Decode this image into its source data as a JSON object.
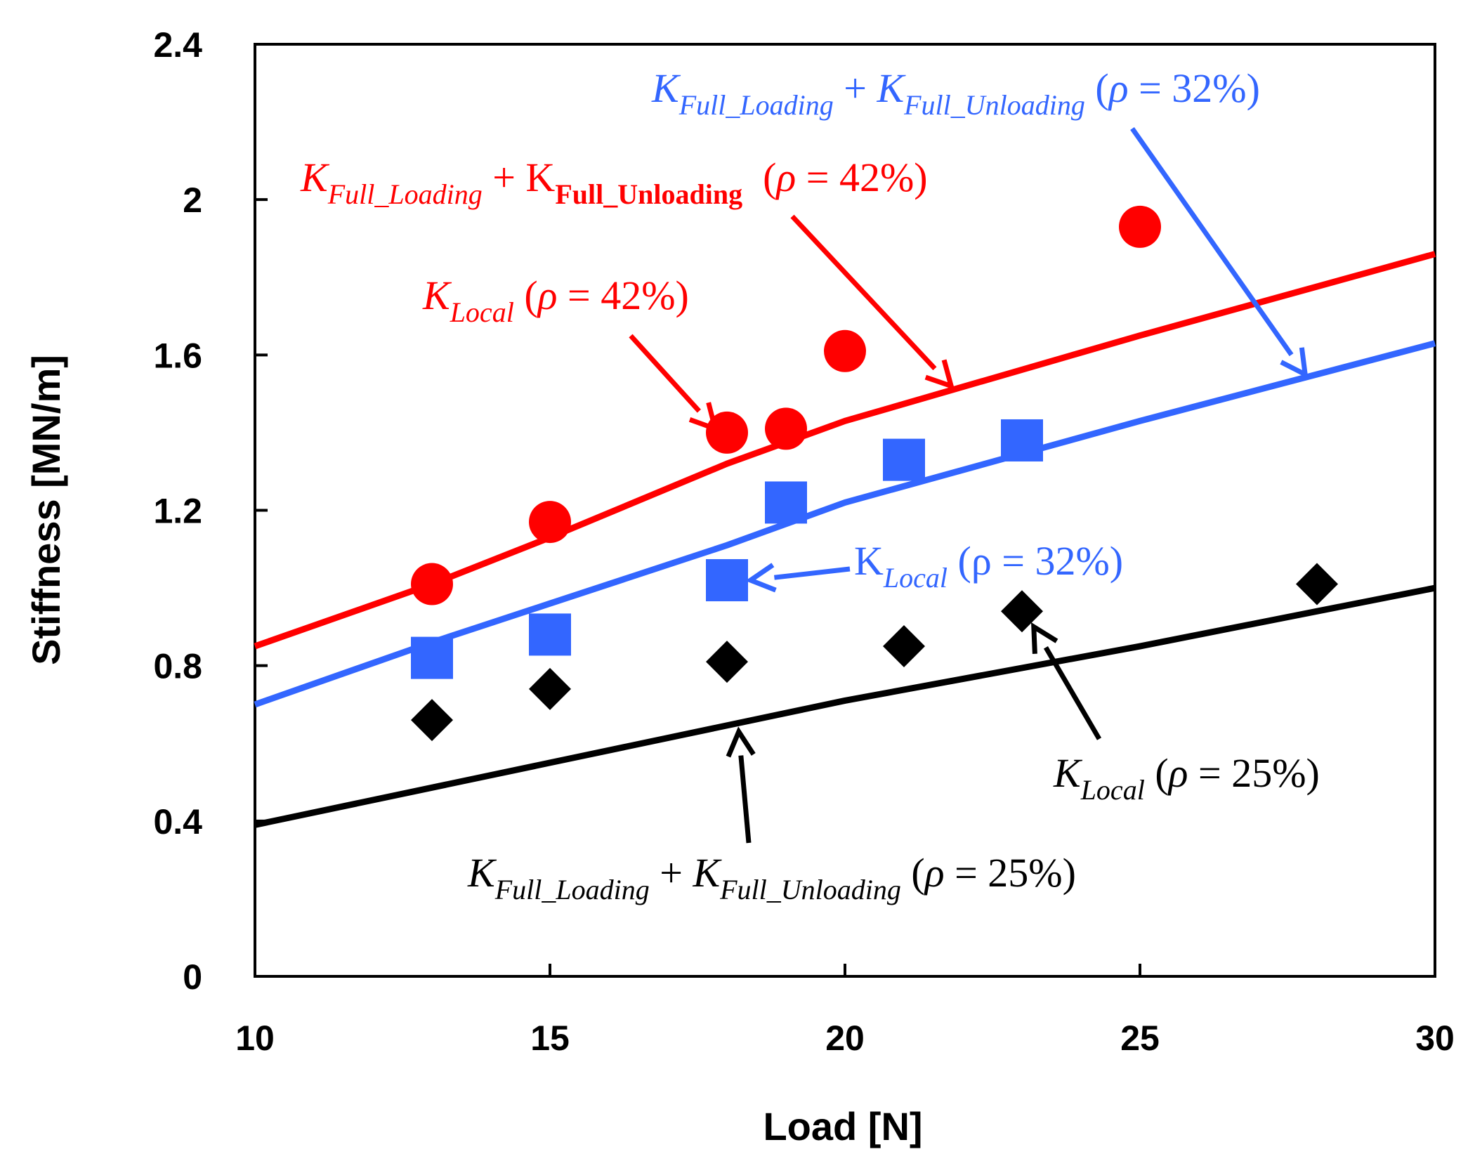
{
  "chart_data": {
    "type": "scatter",
    "title": "",
    "xlabel": "Load [N]",
    "ylabel": "Stiffness [MN/m]",
    "xlim": [
      10,
      30
    ],
    "ylim": [
      0,
      2.4
    ],
    "x_ticks": [
      "10",
      "15",
      "20",
      "25",
      "30"
    ],
    "y_ticks": [
      "0",
      "0.4",
      "0.8",
      "1.2",
      "1.6",
      "2",
      "2.4"
    ],
    "grid": false,
    "series": [
      {
        "name": "K_Local (ρ = 42%)",
        "kind": "points",
        "marker": "circle",
        "color": "#ff0000",
        "x": [
          13,
          15,
          18,
          19,
          20,
          25
        ],
        "y": [
          1.01,
          1.17,
          1.4,
          1.41,
          1.61,
          1.93
        ]
      },
      {
        "name": "K_Local (ρ = 32%)",
        "kind": "points",
        "marker": "square",
        "color": "#3366ff",
        "x": [
          13,
          15,
          18,
          19,
          21,
          23
        ],
        "y": [
          0.82,
          0.88,
          1.02,
          1.22,
          1.33,
          1.38
        ]
      },
      {
        "name": "K_Local (ρ = 25%)",
        "kind": "points",
        "marker": "diamond",
        "color": "#000000",
        "x": [
          13,
          15,
          18,
          21,
          23,
          28
        ],
        "y": [
          0.66,
          0.74,
          0.81,
          0.85,
          0.94,
          1.01
        ]
      },
      {
        "name": "K_Full_Loading + K_Full_Unloading (ρ = 42%)",
        "kind": "line",
        "color": "#ff0000",
        "x": [
          10,
          13,
          15,
          18,
          20,
          25,
          30
        ],
        "y": [
          0.85,
          1.01,
          1.13,
          1.32,
          1.43,
          1.65,
          1.86
        ]
      },
      {
        "name": "K_Full_Loading + K_Full_Unloading (ρ = 32%)",
        "kind": "line",
        "color": "#3366ff",
        "x": [
          10,
          13,
          15,
          18,
          20,
          25,
          30
        ],
        "y": [
          0.7,
          0.86,
          0.96,
          1.11,
          1.22,
          1.43,
          1.63
        ]
      },
      {
        "name": "K_Full_Loading + K_Full_Unloading (ρ = 25%)",
        "kind": "line",
        "color": "#000000",
        "x": [
          10,
          15,
          20,
          25,
          30
        ],
        "y": [
          0.39,
          0.55,
          0.71,
          0.85,
          1.0
        ]
      }
    ],
    "annotations": [
      {
        "id": "blue_full",
        "color": "#3366ff",
        "parts": [
          {
            "text": "K",
            "style": "it"
          },
          {
            "text": "Full_Loading",
            "style": "it-sub"
          },
          {
            "text": " + ",
            "style": "normal"
          },
          {
            "text": "K",
            "style": "it"
          },
          {
            "text": "Full_Unloading",
            "style": "it-sub"
          },
          {
            "text": " (",
            "style": "normal"
          },
          {
            "text": "ρ",
            "style": "it"
          },
          {
            "text": " = 32%)",
            "style": "normal"
          }
        ],
        "arrow_to": [
          27.8,
          1.55
        ]
      },
      {
        "id": "red_full",
        "color": "#ff0000",
        "parts": [
          {
            "text": "K",
            "style": "it"
          },
          {
            "text": "Full_Loading",
            "style": "it-sub"
          },
          {
            "text": " + K",
            "style": "normal"
          },
          {
            "text": "Full_Unloading",
            "style": "bold-sub"
          },
          {
            "text": "  (",
            "style": "normal"
          },
          {
            "text": "ρ",
            "style": "it"
          },
          {
            "text": " = 42%)",
            "style": "normal"
          }
        ],
        "arrow_to": [
          21.8,
          1.52
        ]
      },
      {
        "id": "red_local",
        "color": "#ff0000",
        "parts": [
          {
            "text": "K",
            "style": "it"
          },
          {
            "text": "Local",
            "style": "it-sub"
          },
          {
            "text": " (",
            "style": "normal"
          },
          {
            "text": "ρ",
            "style": "it"
          },
          {
            "text": " = 42%)",
            "style": "normal"
          }
        ],
        "arrow_to": [
          17.8,
          1.41
        ]
      },
      {
        "id": "blue_local",
        "color": "#3366ff",
        "parts": [
          {
            "text": "K",
            "style": "normal"
          },
          {
            "text": "Local",
            "style": "it-sub"
          },
          {
            "text": " (ρ = 32%)",
            "style": "normal"
          }
        ],
        "arrow_to": [
          18.4,
          1.02
        ]
      },
      {
        "id": "black_local",
        "color": "#000000",
        "parts": [
          {
            "text": "K",
            "style": "it"
          },
          {
            "text": "Local",
            "style": "it-sub"
          },
          {
            "text": " (",
            "style": "normal"
          },
          {
            "text": "ρ",
            "style": "it"
          },
          {
            "text": " = 25%)",
            "style": "normal"
          }
        ],
        "arrow_to": [
          23.2,
          0.9
        ]
      },
      {
        "id": "black_full",
        "color": "#000000",
        "parts": [
          {
            "text": "K",
            "style": "it"
          },
          {
            "text": "Full_Loading",
            "style": "it-sub"
          },
          {
            "text": " + ",
            "style": "normal"
          },
          {
            "text": "K",
            "style": "it"
          },
          {
            "text": "Full_Unloading",
            "style": "it-sub"
          },
          {
            "text": " (",
            "style": "normal"
          },
          {
            "text": "ρ",
            "style": "it"
          },
          {
            "text": " = 25%)",
            "style": "normal"
          }
        ],
        "arrow_to": [
          18.2,
          0.63
        ]
      }
    ]
  }
}
